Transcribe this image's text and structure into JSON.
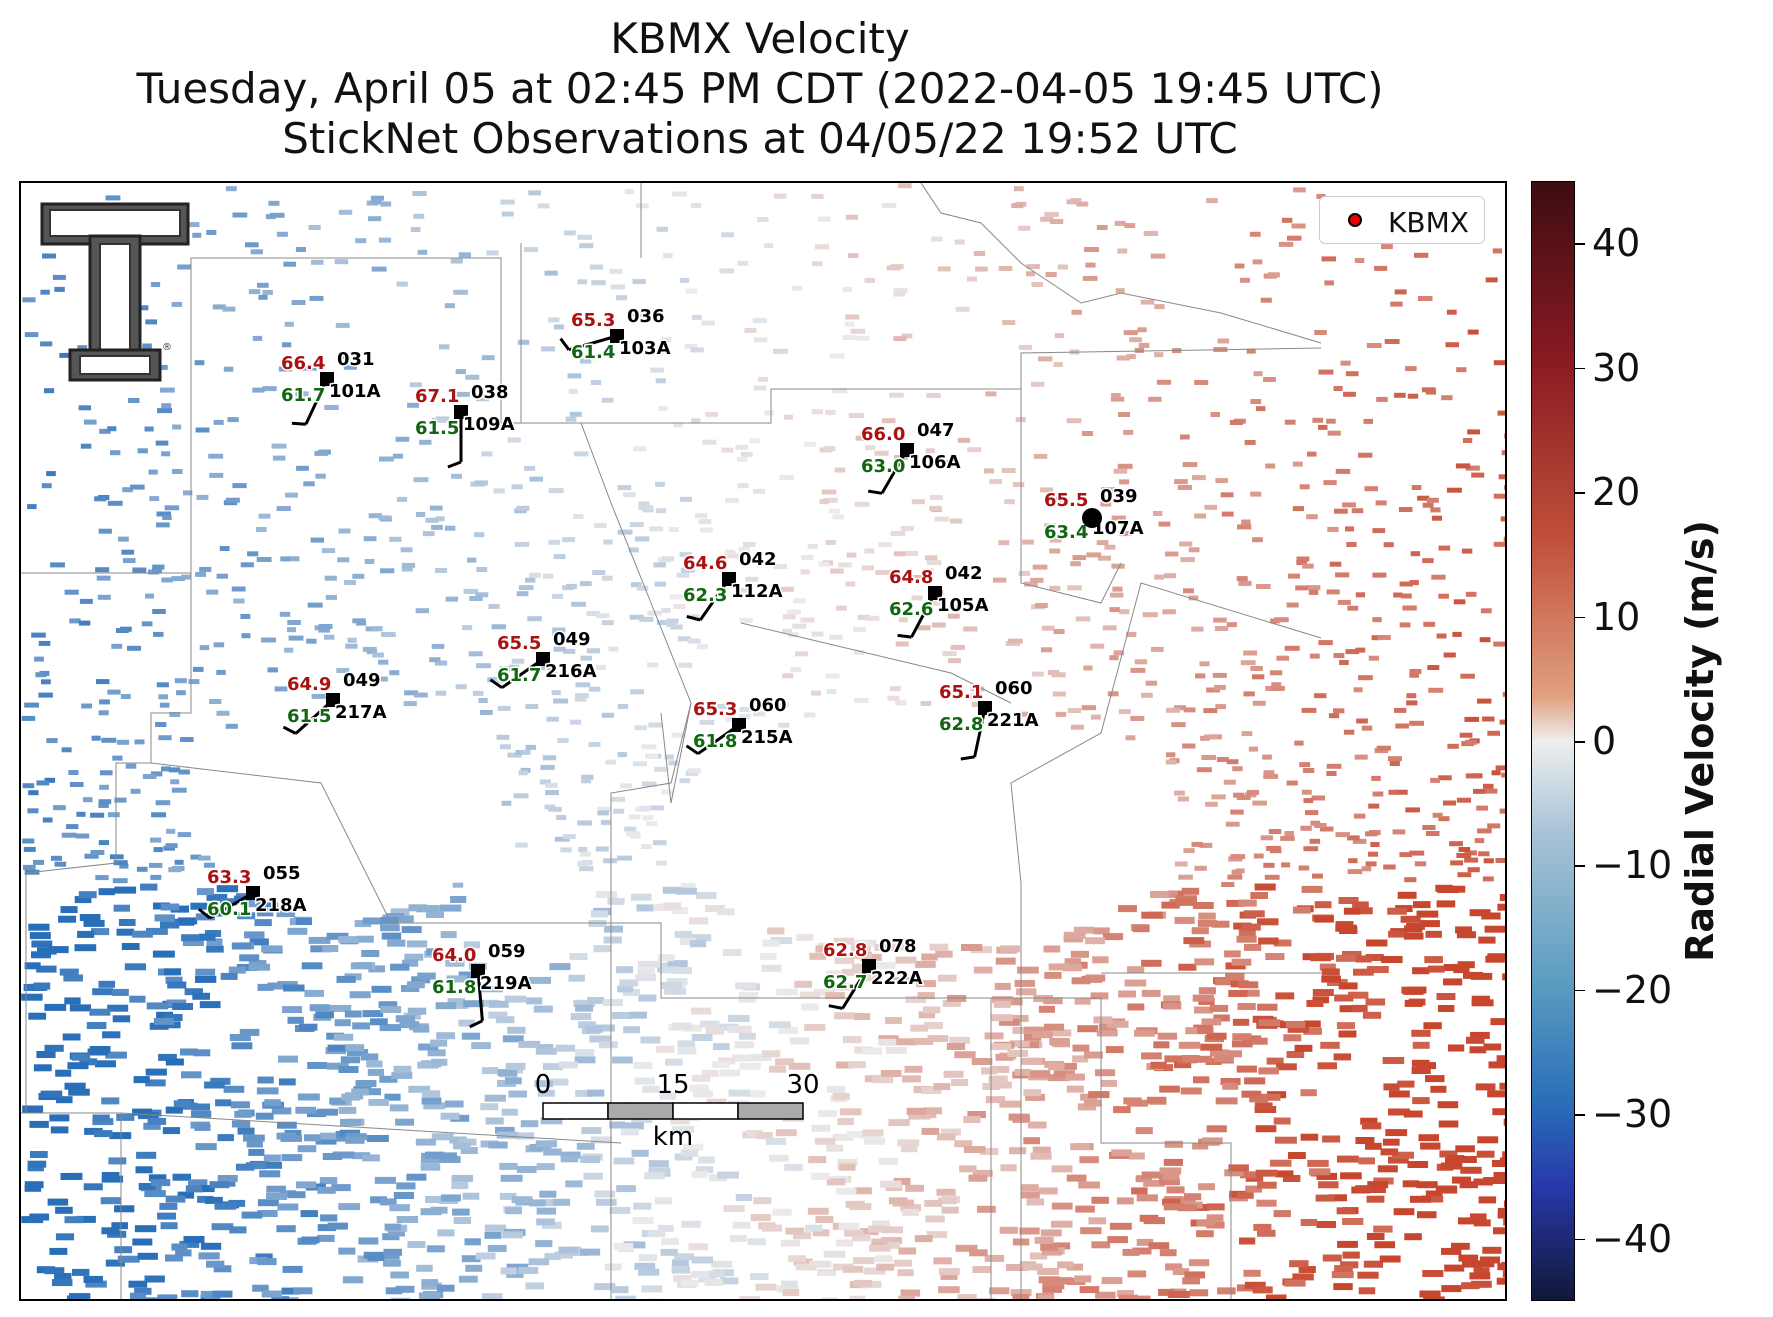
{
  "title": {
    "line1": "KBMX Velocity",
    "line2": "Tuesday, April 05 at 02:45 PM CDT (2022-04-05 19:45 UTC)",
    "line3": "StickNet Observations at 04/05/22 19:52 UTC"
  },
  "legend": {
    "label": "KBMX",
    "marker_color": "#e00000"
  },
  "colorbar": {
    "label": "Radial Velocity (m/s)",
    "ticks": [
      "40",
      "30",
      "20",
      "10",
      "0",
      "−10",
      "−20",
      "−30",
      "−40"
    ],
    "range": [
      -45,
      45
    ]
  },
  "scale_bar": {
    "labels": [
      "0",
      "15",
      "30"
    ],
    "unit": "km"
  },
  "logo": {
    "name": "texas-tech-double-t-logo",
    "mark": "®"
  },
  "stations": [
    {
      "id": "031",
      "name": "101A",
      "temp": "66.4",
      "dew": "61.7"
    },
    {
      "id": "038",
      "name": "109A",
      "temp": "67.1",
      "dew": "61.5"
    },
    {
      "id": "036",
      "name": "103A",
      "temp": "65.3",
      "dew": "61.4"
    },
    {
      "id": "047",
      "name": "106A",
      "temp": "66.0",
      "dew": "63.0"
    },
    {
      "id": "039",
      "name": "107A",
      "temp": "65.5",
      "dew": "63.4"
    },
    {
      "id": "042",
      "name": "112A",
      "temp": "64.6",
      "dew": "62.3"
    },
    {
      "id": "042",
      "name": "105A",
      "temp": "64.8",
      "dew": "62.6"
    },
    {
      "id": "049",
      "name": "216A",
      "temp": "65.5",
      "dew": "61.7"
    },
    {
      "id": "049",
      "name": "217A",
      "temp": "64.9",
      "dew": "61.5"
    },
    {
      "id": "060",
      "name": "215A",
      "temp": "65.3",
      "dew": "61.8"
    },
    {
      "id": "060",
      "name": "221A",
      "temp": "65.1",
      "dew": "62.8"
    },
    {
      "id": "055",
      "name": "218A",
      "temp": "63.3",
      "dew": "60.1"
    },
    {
      "id": "059",
      "name": "219A",
      "temp": "64.0",
      "dew": "61.8"
    },
    {
      "id": "078",
      "name": "222A",
      "temp": "62.8",
      "dew": "62.7"
    }
  ],
  "colors": {
    "temp": "#aa1111",
    "dew": "#116611",
    "outbound": "#c0503a",
    "inbound": "#3a80b0"
  }
}
